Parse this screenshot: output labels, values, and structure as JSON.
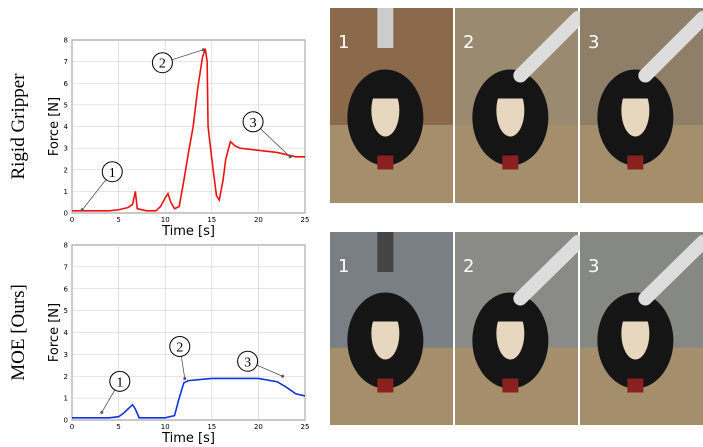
{
  "chart_data": [
    {
      "type": "line",
      "row_label": "Rigid Gripper",
      "xlabel": "Time [s]",
      "ylabel": "Force [N]",
      "xlim": [
        0,
        25
      ],
      "ylim": [
        0,
        8
      ],
      "xticks": [
        0,
        5,
        10,
        15,
        20,
        25
      ],
      "yticks": [
        0,
        1,
        2,
        3,
        4,
        5,
        6,
        7,
        8
      ],
      "grid": true,
      "x": [
        0,
        2,
        4,
        5,
        6,
        6.5,
        6.8,
        7,
        8,
        9,
        9.5,
        10,
        10.3,
        10.6,
        11,
        11.5,
        12,
        12.5,
        13,
        13.5,
        14,
        14.3,
        14.5,
        14.6,
        15,
        15.5,
        15.8,
        16.2,
        16.5,
        17,
        17.5,
        18,
        20,
        22,
        24,
        25
      ],
      "series": [
        {
          "color": "#ee1111",
          "values": [
            0.1,
            0.1,
            0.1,
            0.15,
            0.25,
            0.4,
            1.0,
            0.2,
            0.1,
            0.1,
            0.3,
            0.7,
            0.9,
            0.5,
            0.2,
            0.3,
            1.5,
            2.8,
            4,
            5.8,
            7.2,
            7.6,
            7.0,
            4,
            2.5,
            0.8,
            0.6,
            1.5,
            2.5,
            3.3,
            3.1,
            3.0,
            2.9,
            2.8,
            2.6,
            2.6
          ]
        }
      ],
      "annotations": [
        {
          "text": "1",
          "x": 1.1,
          "y": 0.15
        },
        {
          "text": "2",
          "x": 14.1,
          "y": 7.55
        },
        {
          "text": "3",
          "x": 23.4,
          "y": 2.6
        }
      ]
    },
    {
      "type": "line",
      "row_label": "MOE [Ours]",
      "xlabel": "Time [s]",
      "ylabel": "Force [N]",
      "xlim": [
        0,
        25
      ],
      "ylim": [
        0,
        8
      ],
      "xticks": [
        0,
        5,
        10,
        15,
        20,
        25
      ],
      "yticks": [
        0,
        1,
        2,
        3,
        4,
        5,
        6,
        7,
        8
      ],
      "grid": true,
      "x": [
        0,
        2,
        4,
        5,
        5.5,
        6,
        6.5,
        6.8,
        7,
        7.2,
        8,
        10,
        11,
        11.5,
        12,
        12.5,
        15,
        18,
        20,
        22,
        23,
        24,
        25
      ],
      "series": [
        {
          "color": "#1133dd",
          "values": [
            0.1,
            0.1,
            0.1,
            0.15,
            0.3,
            0.5,
            0.7,
            0.5,
            0.3,
            0.1,
            0.1,
            0.1,
            0.2,
            1.0,
            1.7,
            1.8,
            1.9,
            1.9,
            1.9,
            1.75,
            1.5,
            1.2,
            1.1
          ]
        }
      ],
      "annotations": [
        {
          "text": "1",
          "x": 3.2,
          "y": 0.35
        },
        {
          "text": "2",
          "x": 12.1,
          "y": 1.9
        },
        {
          "text": "3",
          "x": 22.6,
          "y": 2.0
        }
      ]
    }
  ],
  "photos": {
    "top": [
      "1",
      "2",
      "3"
    ],
    "bottom": [
      "1",
      "2",
      "3"
    ]
  }
}
